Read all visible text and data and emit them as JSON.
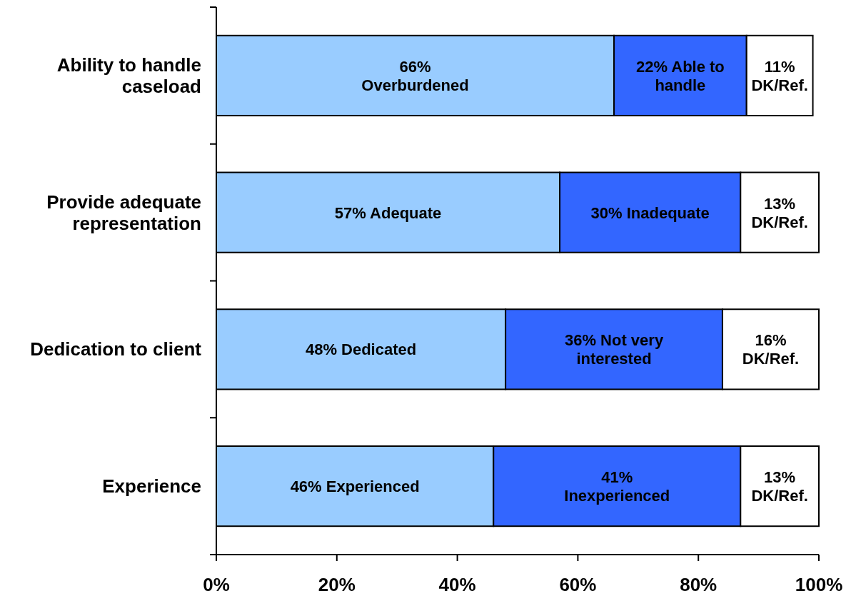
{
  "chart_data": {
    "type": "bar",
    "orientation": "horizontal",
    "stacked": true,
    "categories": [
      "Ability to handle caseload",
      "Provide adequate representation",
      "Dedication to client",
      "Experience"
    ],
    "series": [
      {
        "color": "#99ccff",
        "values": [
          66,
          57,
          48,
          46
        ],
        "value_labels": [
          "66%\nOverburdened",
          "57% Adequate",
          "48% Dedicated",
          "46% Experienced"
        ]
      },
      {
        "color": "#3366ff",
        "values": [
          22,
          30,
          36,
          41
        ],
        "value_labels": [
          "22% Able to\nhandle",
          "30% Inadequate",
          "36% Not very\ninterested",
          "41%\nInexperienced"
        ]
      },
      {
        "color": "#ffffff",
        "values": [
          11,
          13,
          16,
          13
        ],
        "value_labels": [
          "11%\nDK/Ref.",
          "13%\nDK/Ref.",
          "16%\nDK/Ref.",
          "13%\nDK/Ref."
        ]
      }
    ],
    "xlim": [
      0,
      100
    ],
    "xticks": [
      {
        "value": 0,
        "label": "0%"
      },
      {
        "value": 20,
        "label": "20%"
      },
      {
        "value": 40,
        "label": "40%"
      },
      {
        "value": 60,
        "label": "60%"
      },
      {
        "value": 80,
        "label": "80%"
      },
      {
        "value": 100,
        "label": "100%"
      }
    ],
    "grid": false
  }
}
